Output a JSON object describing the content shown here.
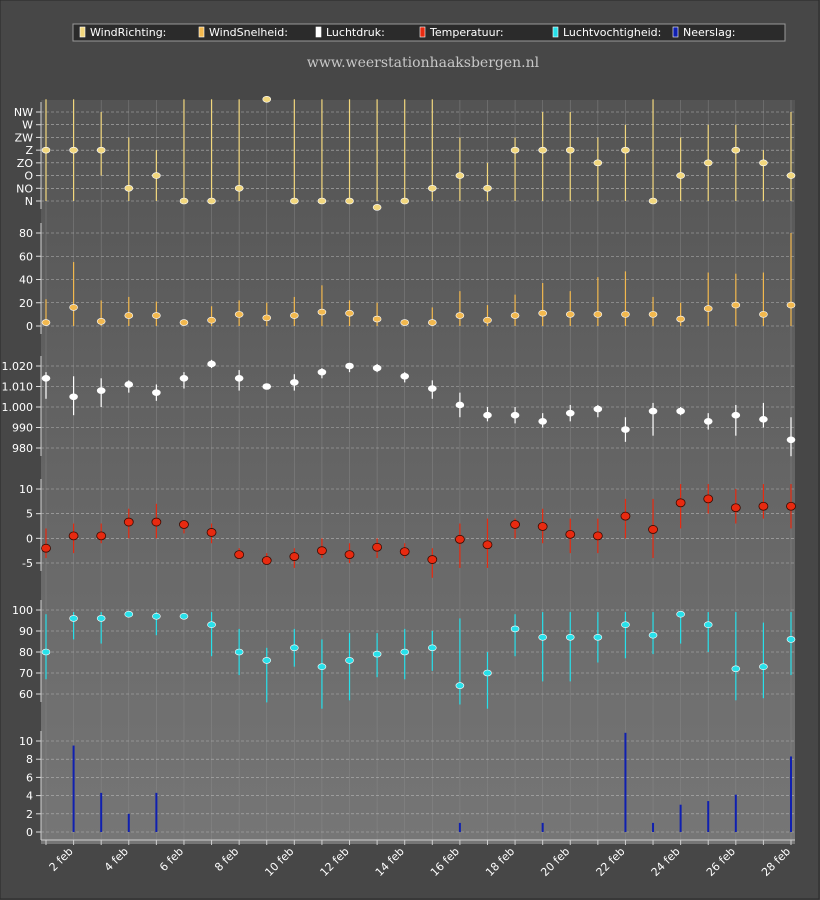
{
  "legend": [
    {
      "label": "WindRichting:",
      "color": "#f2d77d"
    },
    {
      "label": "WindSnelheid:",
      "color": "#f2b84e"
    },
    {
      "label": "Luchtdruk:",
      "color": "#ffffff"
    },
    {
      "label": "Temperatuur:",
      "color": "#e82a10"
    },
    {
      "label": "Luchtvochtigheid:",
      "color": "#27e0ea"
    },
    {
      "label": "Neerslag:",
      "color": "#1020b0"
    }
  ],
  "watermark": "www.weerstationhaaksbergen.nl",
  "chart_data": {
    "type": "multi-panel",
    "x_tick_labels": [
      "2 feb",
      "4 feb",
      "6 feb",
      "8 feb",
      "10 feb",
      "12 feb",
      "14 feb",
      "16 feb",
      "18 feb",
      "20 feb",
      "22 feb",
      "24 feb",
      "26 feb",
      "28 feb"
    ],
    "days": [
      1,
      2,
      3,
      4,
      5,
      6,
      7,
      8,
      9,
      10,
      11,
      12,
      13,
      14,
      15,
      16,
      17,
      18,
      19,
      20,
      21,
      22,
      23,
      24,
      25,
      26,
      27,
      28
    ],
    "panels": [
      {
        "name": "WindRichting",
        "color": "#f2d77d",
        "tick_labels": [
          "N",
          "NO",
          "O",
          "ZO",
          "Z",
          "ZW",
          "W",
          "NW"
        ],
        "ylim": [
          0,
          8
        ],
        "mean": [
          4,
          4,
          4,
          1,
          2,
          0,
          0,
          1,
          8,
          0,
          0,
          0,
          -0.5,
          0,
          1,
          2,
          1,
          4,
          4,
          4,
          3,
          4,
          0,
          2,
          3,
          4,
          3,
          2
        ],
        "low": [
          0,
          0,
          2,
          0,
          0,
          0,
          0,
          0,
          8,
          0,
          0,
          0,
          0,
          0,
          0,
          0,
          0,
          0,
          0,
          0,
          0,
          0,
          0,
          0,
          0,
          0,
          0,
          0
        ],
        "high": [
          8,
          8,
          7,
          5,
          4,
          8,
          8,
          8,
          8,
          8,
          8,
          8,
          8,
          8,
          8,
          5,
          3,
          5,
          7,
          7,
          5,
          6,
          8,
          5,
          6,
          6,
          4,
          7
        ]
      },
      {
        "name": "WindSnelheid",
        "color": "#f2b84e",
        "ticks": [
          0,
          20,
          40,
          60,
          80
        ],
        "ylim": [
          0,
          85
        ],
        "mean": [
          3,
          16,
          4,
          9,
          9,
          3,
          5,
          10,
          7,
          9,
          12,
          11,
          6,
          3,
          3,
          9,
          5,
          9,
          11,
          10,
          10,
          10,
          10,
          6,
          15,
          18,
          10,
          18
        ],
        "low": [
          0,
          0,
          0,
          0,
          0,
          0,
          0,
          0,
          0,
          0,
          0,
          0,
          0,
          0,
          0,
          0,
          0,
          0,
          0,
          0,
          0,
          0,
          0,
          0,
          0,
          0,
          0,
          0
        ],
        "high": [
          23,
          55,
          22,
          25,
          21,
          0,
          17,
          22,
          20,
          25,
          35,
          22,
          20,
          0,
          16,
          30,
          18,
          27,
          37,
          30,
          42,
          47,
          25,
          20,
          46,
          45,
          46,
          80
        ]
      },
      {
        "name": "Luchtdruk",
        "color": "#ffffff",
        "ticks": [
          980,
          990,
          1000,
          1010,
          1020
        ],
        "tick_labels": [
          "980",
          "990",
          "1.000",
          "1.010",
          "1.020"
        ],
        "ylim": [
          975,
          1030
        ],
        "mean": [
          1014,
          1005,
          1008,
          1011,
          1007,
          1014,
          1021,
          1014,
          1010,
          1012,
          1017,
          1020,
          1019,
          1015,
          1009,
          1001,
          996,
          996,
          993,
          997,
          999,
          989,
          998,
          998,
          993,
          996,
          994,
          984
        ],
        "low": [
          1004,
          996,
          1000,
          1007,
          1003,
          1009,
          1019,
          1008,
          1009,
          1008,
          1014,
          1017,
          1017,
          1012,
          1004,
          995,
          993,
          992,
          990,
          993,
          995,
          983,
          986,
          996,
          989,
          986,
          990,
          976
        ],
        "high": [
          1017,
          1015,
          1014,
          1013,
          1011,
          1017,
          1023,
          1018,
          1011,
          1016,
          1019,
          1021,
          1021,
          1017,
          1013,
          1007,
          1000,
          1000,
          997,
          1001,
          1001,
          995,
          1002,
          1000,
          997,
          1001,
          1002,
          995
        ]
      },
      {
        "name": "Temperatuur",
        "color": "#e82a10",
        "ticks": [
          -5,
          0,
          5,
          10
        ],
        "ylim": [
          -9,
          13
        ],
        "mean": [
          -2,
          0.5,
          0.5,
          3.3,
          3.3,
          2.8,
          1.2,
          -3.3,
          -4.5,
          -3.7,
          -2.5,
          -3.3,
          -1.8,
          -2.7,
          -4.3,
          -0.2,
          -1.3,
          2.8,
          2.4,
          0.8,
          0.5,
          4.5,
          1.8,
          7.2,
          8,
          6.2,
          6.5,
          6.5
        ],
        "low": [
          -4,
          -3,
          -1,
          0,
          0,
          1,
          -1,
          -4,
          -5,
          -6,
          -4,
          -5,
          -4,
          -4,
          -8,
          -6,
          -6,
          0,
          -1,
          -3,
          -3,
          0,
          -4,
          2,
          5,
          3,
          4,
          2
        ],
        "high": [
          2,
          3,
          3,
          6,
          7,
          3,
          3,
          -2,
          -3,
          -2,
          0,
          -1,
          0,
          -1,
          -2,
          3,
          4,
          4,
          6,
          4,
          4,
          8,
          8,
          11,
          11,
          10,
          11,
          11
        ]
      },
      {
        "name": "Luchtvochtigheid",
        "color": "#27e0ea",
        "ticks": [
          60,
          70,
          80,
          90,
          100
        ],
        "ylim": [
          50,
          104
        ],
        "mean": [
          80,
          96,
          96,
          98,
          97,
          97,
          93,
          80,
          76,
          82,
          73,
          76,
          79,
          80,
          82,
          64,
          70,
          91,
          87,
          87,
          87,
          93,
          88,
          98,
          93,
          72,
          73,
          86
        ],
        "low": [
          67,
          86,
          84,
          97,
          88,
          96,
          78,
          69,
          56,
          73,
          53,
          57,
          68,
          67,
          71,
          55,
          53,
          78,
          66,
          66,
          75,
          77,
          79,
          84,
          80,
          57,
          58,
          69
        ],
        "high": [
          98,
          99,
          99,
          99,
          99,
          98,
          99,
          91,
          82,
          91,
          86,
          89,
          89,
          91,
          90,
          96,
          80,
          98,
          99,
          99,
          99,
          99,
          99,
          99,
          99,
          99,
          94,
          99
        ]
      },
      {
        "name": "Neerslag",
        "color": "#1020b0",
        "ticks": [
          0,
          2,
          4,
          6,
          8,
          10
        ],
        "ylim": [
          0,
          11
        ],
        "values": [
          0,
          9.5,
          4.3,
          2,
          4.3,
          0,
          0,
          0,
          0,
          0,
          0,
          0,
          0,
          0,
          0,
          1,
          0,
          0,
          1,
          0,
          0,
          10.9,
          1,
          3,
          3.4,
          4.1,
          0,
          8.3
        ]
      }
    ]
  }
}
